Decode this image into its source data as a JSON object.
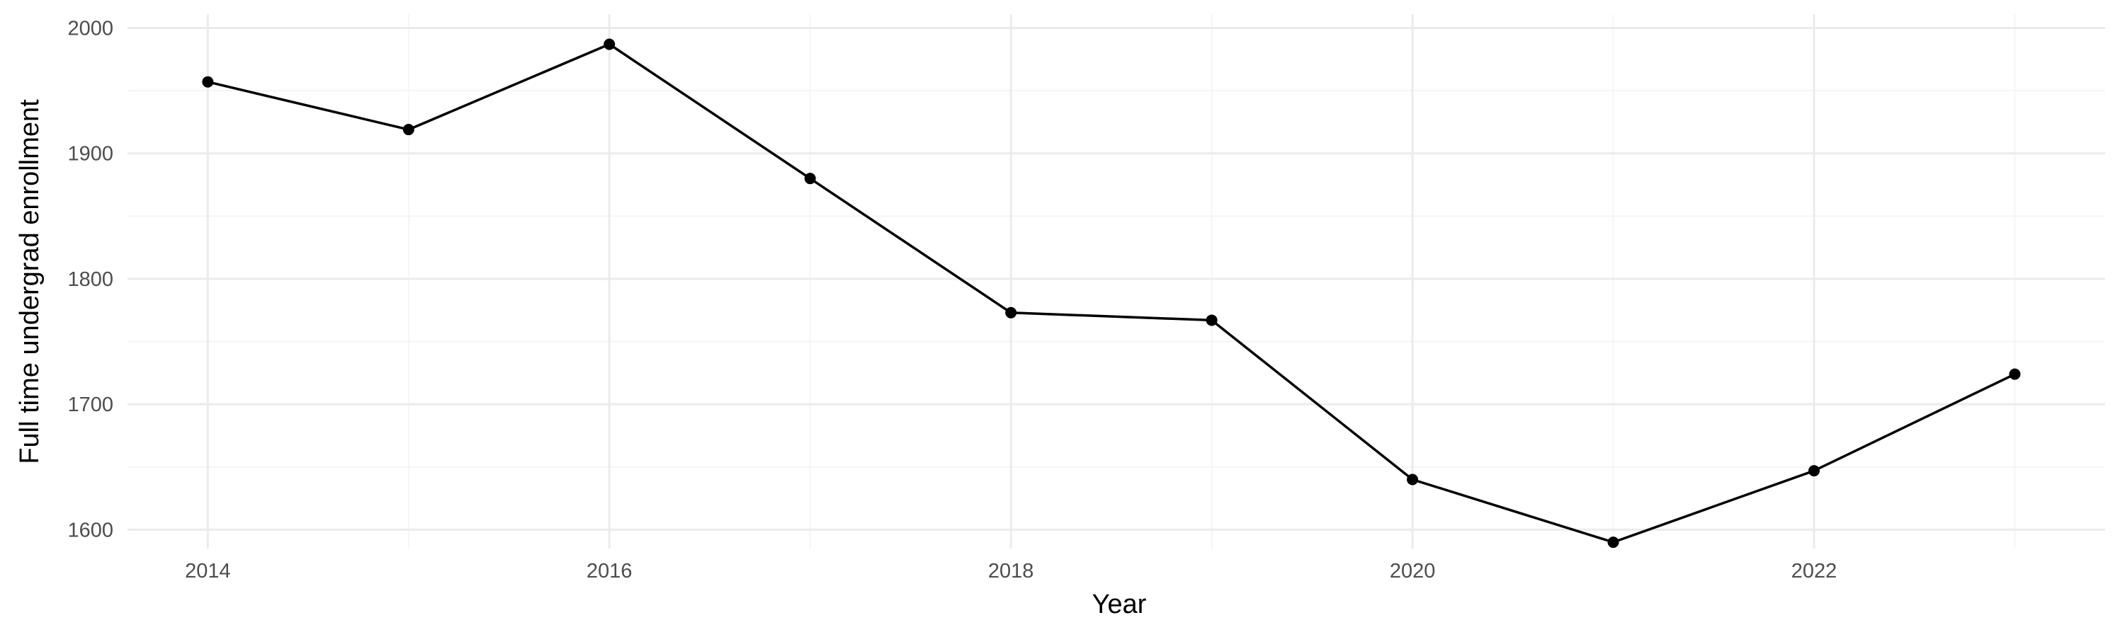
{
  "chart_data": {
    "type": "line",
    "title": "",
    "xlabel": "Year",
    "ylabel": "Full time undergrad enrollment",
    "x": [
      2014,
      2015,
      2016,
      2017,
      2018,
      2019,
      2020,
      2021,
      2022,
      2023
    ],
    "series": [
      {
        "values": [
          1957,
          1919,
          1987,
          1880,
          1773,
          1767,
          1640,
          1590,
          1647,
          1724
        ]
      }
    ],
    "xlim": [
      2013.6,
      2023.45
    ],
    "ylim": [
      1585,
      2011
    ],
    "x_ticks": [
      2014,
      2016,
      2018,
      2020,
      2022
    ],
    "x_tick_labels": [
      "2014",
      "2016",
      "2018",
      "2020",
      "2022"
    ],
    "y_ticks": [
      1600,
      1700,
      1800,
      1900,
      2000
    ],
    "y_tick_labels": [
      "1600",
      "1700",
      "1800",
      "1900",
      "2000"
    ],
    "grid": true,
    "legend": "none",
    "colors": {
      "line": "#000000",
      "point": "#000000",
      "grid_major": "#ebebeb",
      "grid_minor": "#f5f5f5",
      "tick_text": "#4d4d4d",
      "axis_title": "#000000"
    }
  }
}
